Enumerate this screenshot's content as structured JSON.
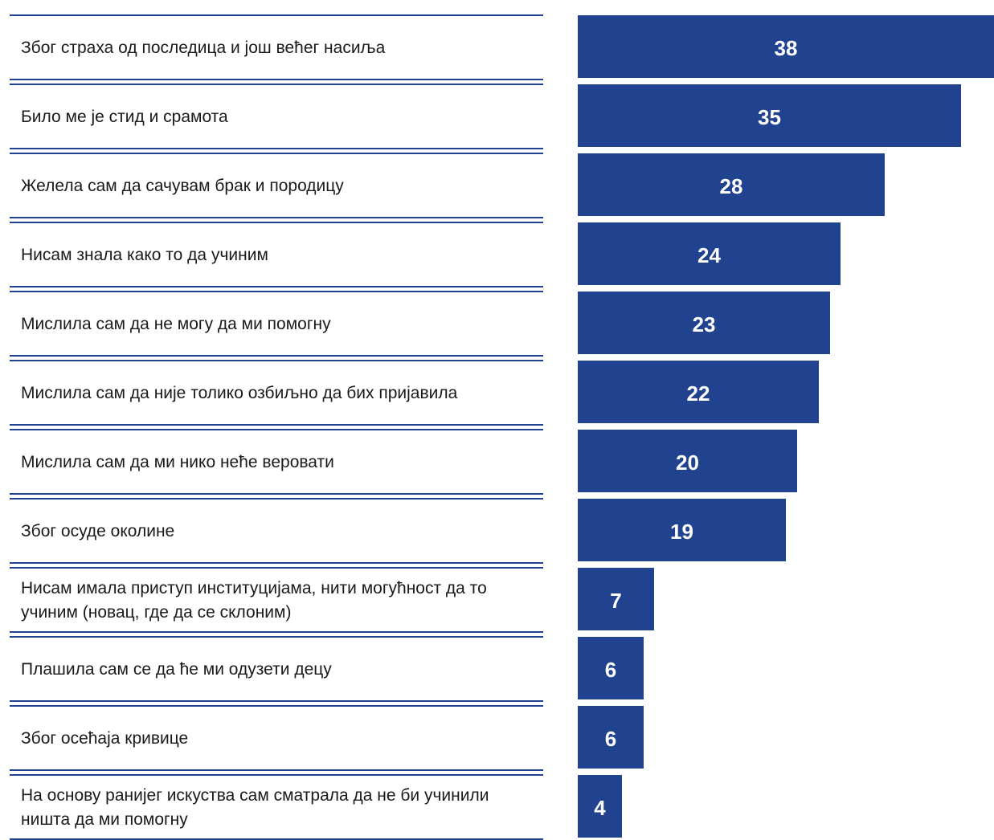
{
  "chart_data": {
    "type": "bar",
    "orientation": "horizontal",
    "categories": [
      "Због страха од последица и још већег насиља",
      "Било ме је стид и срамота",
      "Желела сам да сачувам брак и породицу",
      "Нисам знала како то да учиним",
      "Мислила сам да не могу да ми помогну",
      "Мислила сам да није толико озбиљно да бих пријавила",
      "Мислила сам да ми нико неће веровати",
      "Због осуде околине",
      "Нисам имала приступ институцијама, нити могућност да то учиним (новац, где да се склоним)",
      "Плашила сам се да ће ми одузети децу",
      "Због осећаја кривице",
      "На основу ранијег искуства сам сматрала да не би учинили ништа да ми помогну"
    ],
    "values": [
      38,
      35,
      28,
      24,
      23,
      22,
      20,
      19,
      7,
      6,
      6,
      4
    ],
    "value_labels": [
      "38",
      "35",
      "28",
      "24",
      "23",
      "22",
      "20",
      "19",
      "7",
      "6",
      "6",
      "4"
    ],
    "xlim": [
      0,
      38
    ],
    "grid": false,
    "legend": "none",
    "colors": {
      "bar": "#21428f",
      "rule": "#21428f",
      "label_text": "#1a1a1a",
      "value_text": "#ffffff"
    }
  }
}
